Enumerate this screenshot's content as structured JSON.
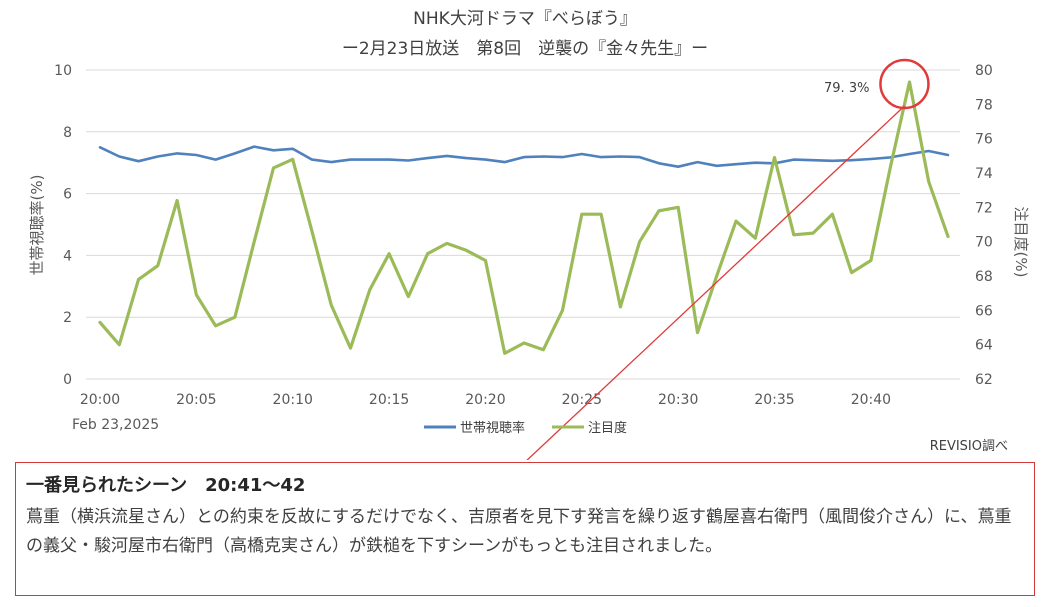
{
  "chart_data": {
    "type": "line",
    "title": "NHK大河ドラマ『べらぼう』",
    "subtitle": "ー2月23日放送　第8回　逆襲の『金々先生』ー",
    "date_label": "Feb 23,2025",
    "source": "REVISIO調べ",
    "x_tick_labels": [
      "20:00",
      "20:05",
      "20:10",
      "20:15",
      "20:20",
      "20:25",
      "20:30",
      "20:35",
      "20:40"
    ],
    "x_range": [
      0,
      44
    ],
    "left_axis": {
      "label": "世帯視聴率(%)",
      "range": [
        0,
        10
      ],
      "ticks": [
        "0",
        "2",
        "4",
        "6",
        "8",
        "10"
      ]
    },
    "right_axis": {
      "label": "注目度(%)",
      "range": [
        62,
        80
      ],
      "ticks": [
        "62",
        "64",
        "66",
        "68",
        "70",
        "72",
        "74",
        "76",
        "78",
        "80"
      ]
    },
    "grid": "horizontal",
    "legend_position": "bottom",
    "series": [
      {
        "name": "世帯視聴率",
        "axis": "left",
        "color": "#4f81bd",
        "x": [
          0,
          1,
          2,
          3,
          4,
          5,
          6,
          7,
          8,
          9,
          10,
          11,
          12,
          13,
          14,
          15,
          16,
          17,
          18,
          19,
          20,
          21,
          22,
          23,
          24,
          25,
          26,
          27,
          28,
          29,
          30,
          31,
          32,
          33,
          34,
          35,
          36,
          37,
          38,
          39,
          40,
          41,
          42,
          43,
          44
        ],
        "values": [
          7.5,
          7.2,
          7.05,
          7.2,
          7.3,
          7.25,
          7.1,
          7.3,
          7.52,
          7.4,
          7.45,
          7.1,
          7.02,
          7.1,
          7.1,
          7.1,
          7.07,
          7.15,
          7.22,
          7.15,
          7.1,
          7.02,
          7.18,
          7.2,
          7.18,
          7.28,
          7.18,
          7.2,
          7.18,
          6.98,
          6.87,
          7.02,
          6.9,
          6.95,
          7.0,
          6.98,
          7.1,
          7.08,
          7.06,
          7.08,
          7.12,
          7.17,
          7.28,
          7.38,
          7.25
        ]
      },
      {
        "name": "注目度",
        "axis": "right",
        "color": "#9bbb59",
        "x": [
          0,
          1,
          2,
          3,
          4,
          5,
          6,
          7,
          8,
          9,
          10,
          11,
          12,
          13,
          14,
          15,
          16,
          17,
          18,
          19,
          20,
          21,
          22,
          23,
          24,
          25,
          26,
          27,
          28,
          29,
          30,
          31,
          32,
          33,
          34,
          35,
          36,
          37,
          38,
          39,
          40,
          41,
          42,
          43,
          44
        ],
        "values": [
          65.3,
          64.0,
          67.8,
          68.6,
          72.4,
          66.9,
          65.1,
          65.6,
          70.0,
          74.3,
          74.8,
          70.6,
          66.3,
          63.8,
          67.2,
          69.3,
          66.8,
          69.3,
          69.9,
          69.5,
          68.9,
          63.5,
          64.1,
          63.7,
          66.0,
          71.6,
          71.6,
          66.2,
          70.0,
          71.8,
          72.0,
          64.7,
          68.0,
          71.2,
          70.2,
          74.9,
          70.4,
          70.5,
          71.6,
          68.2,
          68.9,
          74.3,
          79.3,
          73.5,
          70.3
        ]
      }
    ],
    "annotation": {
      "text": "79. 3%",
      "x": 42,
      "value": 79.3,
      "series": "注目度"
    }
  },
  "note": {
    "heading": "一番見られたシーン　20:41～42",
    "body": "蔦重（横浜流星さん）との約束を反故にするだけでなく、吉原者を見下す発言を繰り返す鶴屋喜右衛門（風間俊介さん）に、蔦重の義父・駿河屋市右衛門（高橋克実さん）が鉄槌を下すシーンがもっとも注目されました。"
  }
}
